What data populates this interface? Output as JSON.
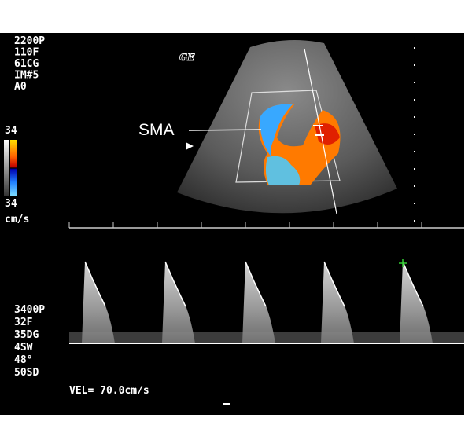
{
  "logo": "GE",
  "color_settings": [
    "2200P",
    "110F",
    "61CG",
    "IM#5",
    "A0"
  ],
  "color_scale": {
    "max": "34",
    "min": "34",
    "unit": "cm/s"
  },
  "annotation": "SMA",
  "doppler_settings": [
    "3400P",
    "32F",
    "35DG",
    "4SW",
    "48°",
    "50SD"
  ],
  "velocity": "VEL= 70.0cm/s"
}
